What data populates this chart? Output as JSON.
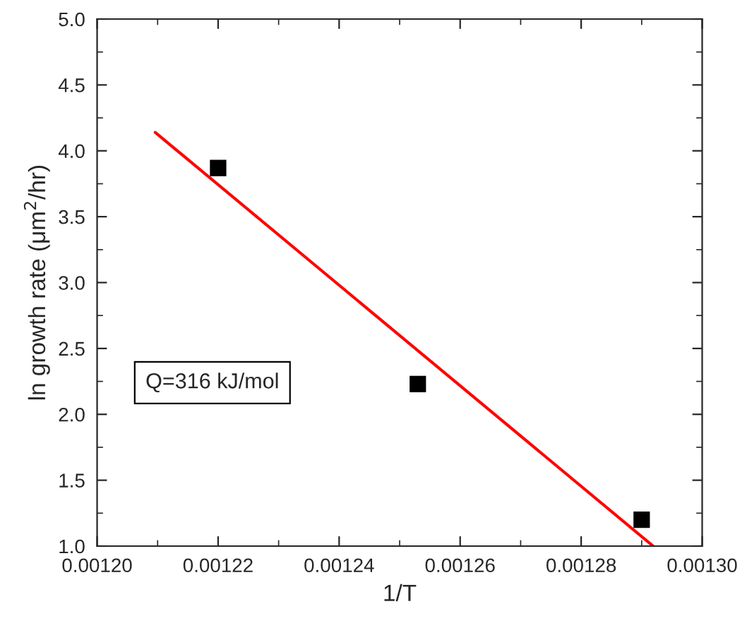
{
  "chart_data": {
    "type": "scatter",
    "xlabel": "1/T",
    "ylabel": "ln growth rate (μm$^{2}$/hr)",
    "xlim": [
      0.0012,
      0.0013
    ],
    "ylim": [
      1.0,
      5.0
    ],
    "xticks": [
      {
        "value": 0.0012,
        "label": "0.00120"
      },
      {
        "value": 0.00122,
        "label": "0.00122"
      },
      {
        "value": 0.00124,
        "label": "0.00124"
      },
      {
        "value": 0.00126,
        "label": "0.00126"
      },
      {
        "value": 0.00128,
        "label": "0.00128"
      },
      {
        "value": 0.0013,
        "label": "0.00130"
      }
    ],
    "yticks": [
      {
        "value": 1.0,
        "label": "1.0"
      },
      {
        "value": 1.5,
        "label": "1.5"
      },
      {
        "value": 2.0,
        "label": "2.0"
      },
      {
        "value": 2.5,
        "label": "2.5"
      },
      {
        "value": 3.0,
        "label": "3.0"
      },
      {
        "value": 3.5,
        "label": "3.5"
      },
      {
        "value": 4.0,
        "label": "4.0"
      },
      {
        "value": 4.5,
        "label": "4.5"
      },
      {
        "value": 5.0,
        "label": "5.0"
      }
    ],
    "grid": false,
    "legend": false,
    "series": [
      {
        "marker": "square",
        "color": "#000000",
        "x": [
          0.00122,
          0.001253,
          0.00129
        ],
        "values": [
          3.87,
          2.23,
          1.2
        ]
      },
      {
        "type": "line",
        "color": "#ff0000",
        "x": [
          0.0012096,
          0.0012919
        ],
        "values": [
          4.14,
          1.0
        ]
      }
    ],
    "annotations": [
      "Q=316 kJ/mol"
    ]
  }
}
